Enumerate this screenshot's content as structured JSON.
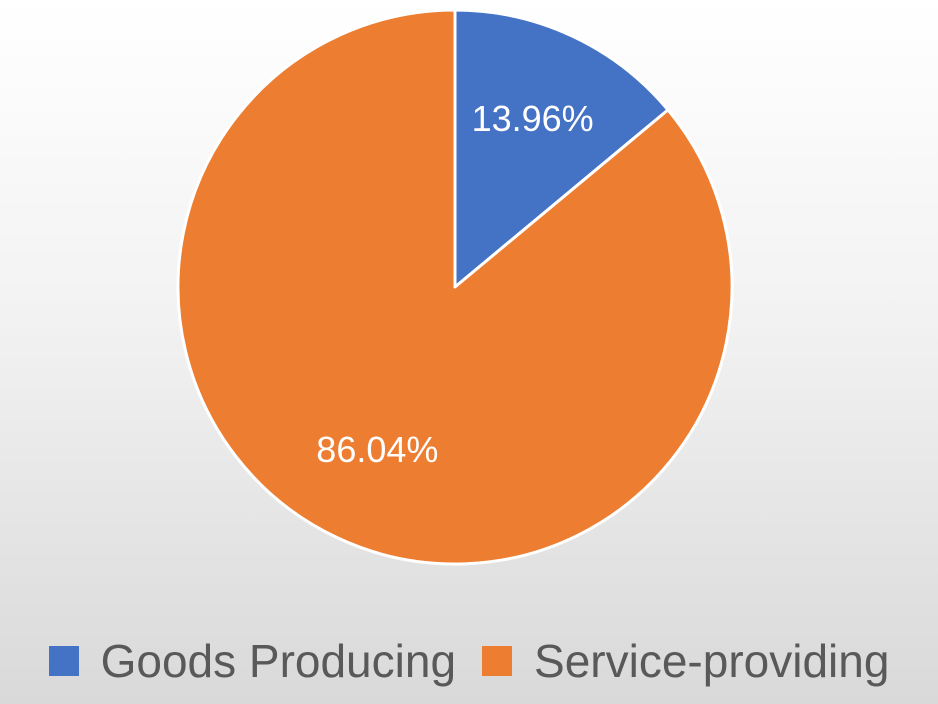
{
  "chart_data": {
    "type": "pie",
    "title": "",
    "categories": [
      "Goods Producing",
      "Service-providing"
    ],
    "values": [
      13.96,
      86.04
    ],
    "data_labels": [
      "13.96%",
      "86.04%"
    ],
    "colors": [
      "#4472C4",
      "#ED7D31"
    ],
    "legend_position": "bottom",
    "start_angle": "12 o'clock",
    "direction": "clockwise"
  },
  "legend": {
    "items": [
      {
        "label": "Goods Producing",
        "color": "#4472C4"
      },
      {
        "label": "Service-providing",
        "color": "#ED7D31"
      }
    ]
  }
}
